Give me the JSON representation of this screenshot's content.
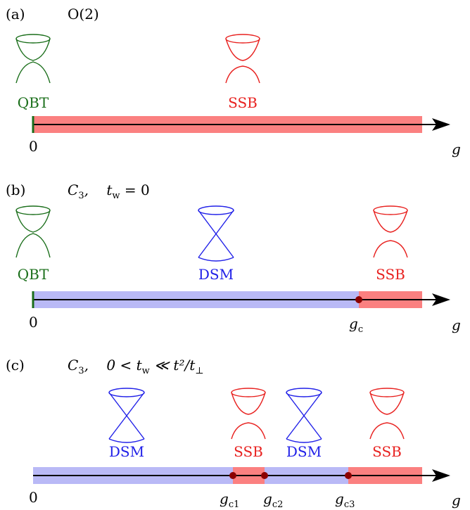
{
  "panels": [
    {
      "tag": "(a)",
      "title": "O(2)",
      "phases": [
        {
          "name": "QBT",
          "icon": "qbt-icon",
          "color": "#1a6e1a"
        },
        {
          "name": "SSB",
          "icon": "ssb-icon",
          "color": "#e8211f"
        }
      ],
      "axis": {
        "origin_label": "0",
        "end_label": "g",
        "points": []
      }
    },
    {
      "tag": "(b)",
      "title_main": "C",
      "title_sub": "3",
      "title_rest": ",    t",
      "title_wsub": "w",
      "title_tail": " = 0",
      "phases": [
        {
          "name": "QBT",
          "icon": "qbt-icon",
          "color": "#1a6e1a"
        },
        {
          "name": "DSM",
          "icon": "dsm-icon",
          "color": "#2020e8"
        },
        {
          "name": "SSB",
          "icon": "ssb-icon",
          "color": "#e8211f"
        }
      ],
      "axis": {
        "origin_label": "0",
        "end_label": "g",
        "points": [
          {
            "label": "g",
            "sub": "c"
          }
        ]
      }
    },
    {
      "tag": "(c)",
      "title_main": "C",
      "title_sub": "3",
      "title_rest": ",    0 < t",
      "title_wsub": "w",
      "title_tail": " ≪ t²/t",
      "title_perp": "⊥",
      "phases": [
        {
          "name": "DSM",
          "icon": "dsm-icon",
          "color": "#2020e8"
        },
        {
          "name": "SSB",
          "icon": "ssb-icon",
          "color": "#e8211f"
        },
        {
          "name": "DSM",
          "icon": "dsm-icon",
          "color": "#2020e8"
        },
        {
          "name": "SSB",
          "icon": "ssb-icon",
          "color": "#e8211f"
        }
      ],
      "axis": {
        "origin_label": "0",
        "end_label": "g",
        "points": [
          {
            "label": "g",
            "sub": "c1"
          },
          {
            "label": "g",
            "sub": "c2"
          },
          {
            "label": "g",
            "sub": "c3"
          }
        ]
      }
    }
  ],
  "colors": {
    "qbt": "#1a6e1a",
    "dsm": "#2020e8",
    "ssb": "#e8211f",
    "ssb_band": "#fb8080",
    "dsm_band": "#b9b9f6",
    "critical_point": "#8b0000"
  }
}
